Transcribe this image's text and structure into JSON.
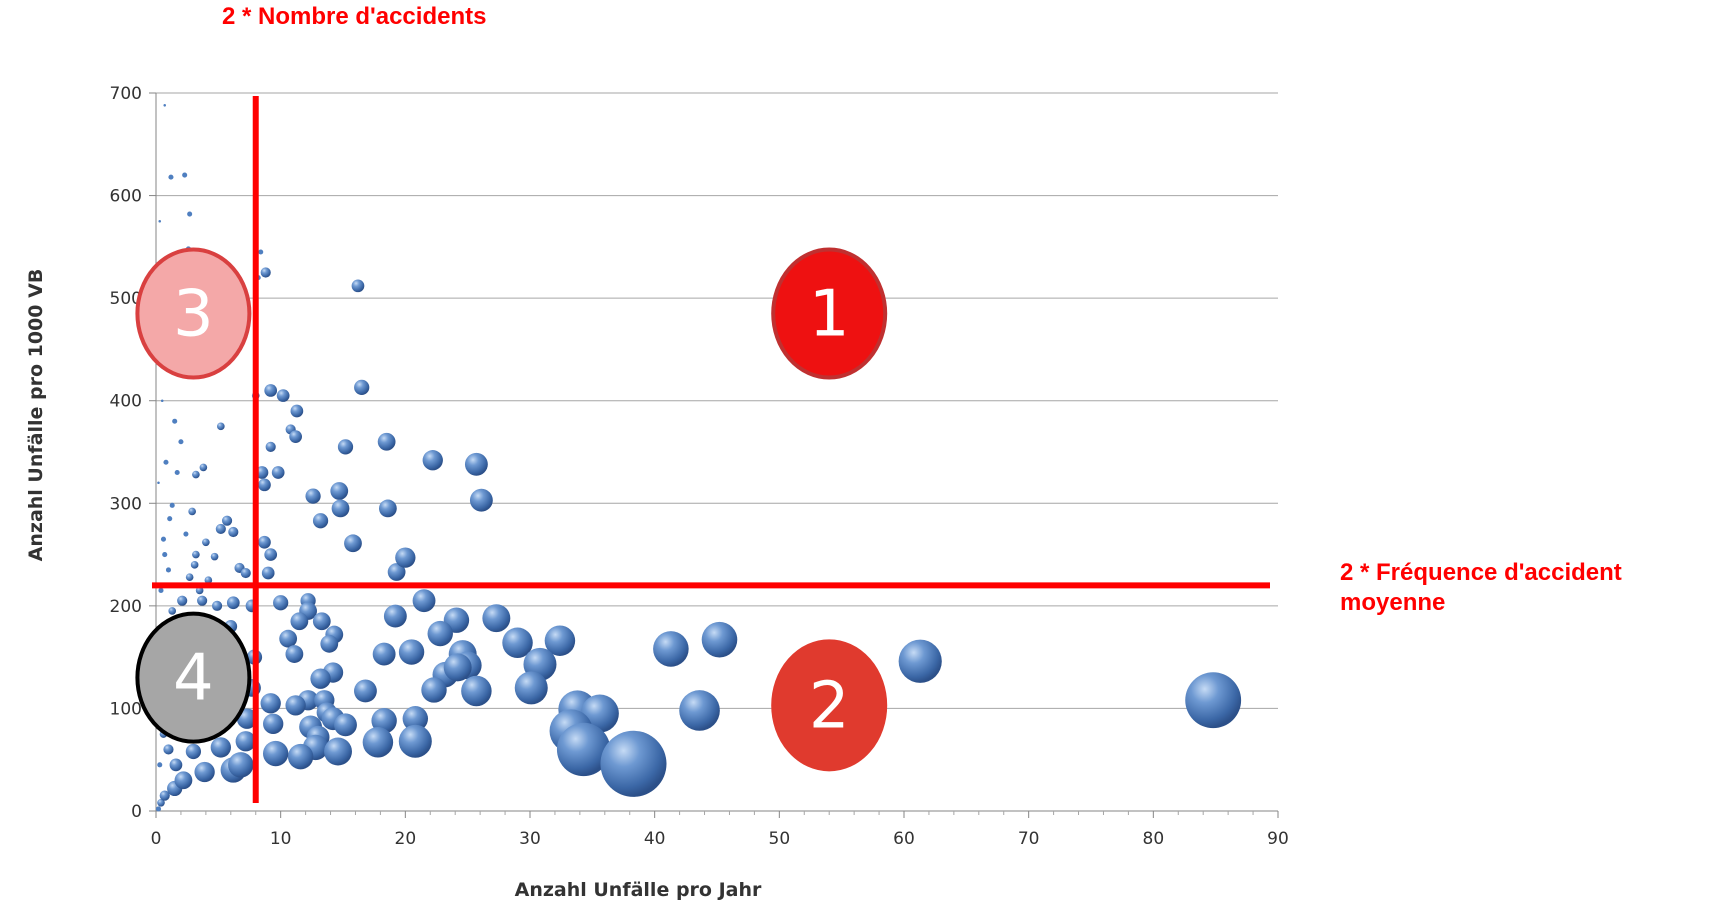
{
  "chart_data": {
    "type": "scatter",
    "variant": "bubble",
    "xlabel": "Anzahl Unfälle pro Jahr",
    "ylabel": "Anzahl Unfälle pro 1000 VB",
    "xlim": [
      0,
      90
    ],
    "ylim": [
      0,
      700
    ],
    "x_ticks": [
      0,
      10,
      20,
      30,
      40,
      50,
      60,
      70,
      80,
      90
    ],
    "y_ticks": [
      0,
      100,
      200,
      300,
      400,
      500,
      600,
      700
    ],
    "grid": "horizontal",
    "legend": "none",
    "series_color": "#4f7fc0",
    "reference_lines": {
      "vertical": {
        "x": 8,
        "label": "2 * Nombre d'accidents"
      },
      "horizontal": {
        "y": 220,
        "label": "2 * Fréquence d'accident\nmoyenne"
      },
      "color": "#ff0000"
    },
    "quadrants": [
      {
        "label": "1",
        "x": 54,
        "y": 485,
        "fill": "#ee1111",
        "border": "#c03030",
        "text": "#ffffff"
      },
      {
        "label": "2",
        "x": 54,
        "y": 103,
        "fill": "#e03a2e",
        "border": "#e03a2e",
        "text": "#ffffff"
      },
      {
        "label": "3",
        "x": 3,
        "y": 485,
        "fill": "#f4a8a8",
        "border": "#d94040",
        "text": "#ffffff"
      },
      {
        "label": "4",
        "x": 3,
        "y": 130,
        "fill": "#a6a6a6",
        "border": "#000000",
        "text": "#ffffff"
      }
    ],
    "points": [
      {
        "x": 0.7,
        "y": 688,
        "s": 1
      },
      {
        "x": 1.2,
        "y": 618,
        "s": 2
      },
      {
        "x": 2.3,
        "y": 620,
        "s": 2
      },
      {
        "x": 2.7,
        "y": 582,
        "s": 2
      },
      {
        "x": 0.3,
        "y": 575,
        "s": 1
      },
      {
        "x": 2.6,
        "y": 548,
        "s": 2
      },
      {
        "x": 8.4,
        "y": 545,
        "s": 2
      },
      {
        "x": 8.8,
        "y": 525,
        "s": 4
      },
      {
        "x": 16.2,
        "y": 512,
        "s": 5
      },
      {
        "x": 8.2,
        "y": 520,
        "s": 2
      },
      {
        "x": 16.5,
        "y": 413,
        "s": 6
      },
      {
        "x": 9.2,
        "y": 410,
        "s": 5
      },
      {
        "x": 10.2,
        "y": 405,
        "s": 5
      },
      {
        "x": 8.0,
        "y": 405,
        "s": 3
      },
      {
        "x": 11.3,
        "y": 390,
        "s": 5
      },
      {
        "x": 10.8,
        "y": 372,
        "s": 4
      },
      {
        "x": 11.2,
        "y": 365,
        "s": 5
      },
      {
        "x": 5.2,
        "y": 375,
        "s": 3
      },
      {
        "x": 18.5,
        "y": 360,
        "s": 7
      },
      {
        "x": 22.2,
        "y": 342,
        "s": 8
      },
      {
        "x": 25.7,
        "y": 338,
        "s": 9
      },
      {
        "x": 15.2,
        "y": 355,
        "s": 6
      },
      {
        "x": 9.2,
        "y": 355,
        "s": 4
      },
      {
        "x": 8.5,
        "y": 330,
        "s": 5
      },
      {
        "x": 9.8,
        "y": 330,
        "s": 5
      },
      {
        "x": 3.8,
        "y": 335,
        "s": 3
      },
      {
        "x": 3.2,
        "y": 328,
        "s": 3
      },
      {
        "x": 8.7,
        "y": 318,
        "s": 5
      },
      {
        "x": 14.7,
        "y": 312,
        "s": 7
      },
      {
        "x": 12.6,
        "y": 307,
        "s": 6
      },
      {
        "x": 26.1,
        "y": 303,
        "s": 9
      },
      {
        "x": 18.6,
        "y": 295,
        "s": 7
      },
      {
        "x": 14.8,
        "y": 295,
        "s": 7
      },
      {
        "x": 13.2,
        "y": 283,
        "s": 6
      },
      {
        "x": 5.7,
        "y": 283,
        "s": 4
      },
      {
        "x": 5.2,
        "y": 275,
        "s": 4
      },
      {
        "x": 6.2,
        "y": 272,
        "s": 4
      },
      {
        "x": 15.8,
        "y": 261,
        "s": 7
      },
      {
        "x": 8.7,
        "y": 262,
        "s": 5
      },
      {
        "x": 9.2,
        "y": 250,
        "s": 5
      },
      {
        "x": 20.0,
        "y": 247,
        "s": 8
      },
      {
        "x": 3.2,
        "y": 250,
        "s": 3
      },
      {
        "x": 4.7,
        "y": 248,
        "s": 3
      },
      {
        "x": 19.3,
        "y": 233,
        "s": 7
      },
      {
        "x": 6.7,
        "y": 237,
        "s": 4
      },
      {
        "x": 7.2,
        "y": 232,
        "s": 4
      },
      {
        "x": 9.0,
        "y": 232,
        "s": 5
      },
      {
        "x": 2.7,
        "y": 228,
        "s": 3
      },
      {
        "x": 4.2,
        "y": 225,
        "s": 3
      },
      {
        "x": 12.2,
        "y": 205,
        "s": 6
      },
      {
        "x": 10.0,
        "y": 203,
        "s": 6
      },
      {
        "x": 21.5,
        "y": 205,
        "s": 9
      },
      {
        "x": 6.2,
        "y": 203,
        "s": 5
      },
      {
        "x": 7.7,
        "y": 200,
        "s": 5
      },
      {
        "x": 19.2,
        "y": 190,
        "s": 9
      },
      {
        "x": 12.2,
        "y": 195,
        "s": 7
      },
      {
        "x": 11.5,
        "y": 185,
        "s": 7
      },
      {
        "x": 13.3,
        "y": 185,
        "s": 7
      },
      {
        "x": 24.1,
        "y": 186,
        "s": 10
      },
      {
        "x": 27.3,
        "y": 188,
        "s": 11
      },
      {
        "x": 22.8,
        "y": 173,
        "s": 10
      },
      {
        "x": 14.3,
        "y": 172,
        "s": 7
      },
      {
        "x": 10.6,
        "y": 168,
        "s": 7
      },
      {
        "x": 13.9,
        "y": 163,
        "s": 7
      },
      {
        "x": 29.0,
        "y": 164,
        "s": 12
      },
      {
        "x": 32.4,
        "y": 166,
        "s": 12
      },
      {
        "x": 45.2,
        "y": 167,
        "s": 14
      },
      {
        "x": 41.3,
        "y": 158,
        "s": 14
      },
      {
        "x": 61.3,
        "y": 146,
        "s": 17
      },
      {
        "x": 20.5,
        "y": 155,
        "s": 10
      },
      {
        "x": 18.3,
        "y": 153,
        "s": 9
      },
      {
        "x": 24.6,
        "y": 153,
        "s": 11
      },
      {
        "x": 25.0,
        "y": 142,
        "s": 11
      },
      {
        "x": 30.8,
        "y": 143,
        "s": 13
      },
      {
        "x": 11.1,
        "y": 153,
        "s": 7
      },
      {
        "x": 23.2,
        "y": 133,
        "s": 10
      },
      {
        "x": 24.2,
        "y": 140,
        "s": 11
      },
      {
        "x": 14.2,
        "y": 135,
        "s": 8
      },
      {
        "x": 13.2,
        "y": 129,
        "s": 8
      },
      {
        "x": 30.1,
        "y": 120,
        "s": 13
      },
      {
        "x": 25.7,
        "y": 117,
        "s": 12
      },
      {
        "x": 22.3,
        "y": 118,
        "s": 10
      },
      {
        "x": 16.8,
        "y": 117,
        "s": 9
      },
      {
        "x": 84.8,
        "y": 108,
        "s": 22
      },
      {
        "x": 12.2,
        "y": 108,
        "s": 8
      },
      {
        "x": 13.5,
        "y": 108,
        "s": 8
      },
      {
        "x": 9.2,
        "y": 105,
        "s": 8
      },
      {
        "x": 11.2,
        "y": 103,
        "s": 8
      },
      {
        "x": 33.8,
        "y": 99,
        "s": 15
      },
      {
        "x": 35.6,
        "y": 95,
        "s": 15
      },
      {
        "x": 43.6,
        "y": 98,
        "s": 16
      },
      {
        "x": 13.7,
        "y": 96,
        "s": 8
      },
      {
        "x": 14.2,
        "y": 90,
        "s": 9
      },
      {
        "x": 20.8,
        "y": 90,
        "s": 10
      },
      {
        "x": 18.3,
        "y": 88,
        "s": 10
      },
      {
        "x": 15.2,
        "y": 84,
        "s": 9
      },
      {
        "x": 12.4,
        "y": 82,
        "s": 9
      },
      {
        "x": 9.4,
        "y": 85,
        "s": 8
      },
      {
        "x": 33.3,
        "y": 78,
        "s": 17
      },
      {
        "x": 13.0,
        "y": 72,
        "s": 9
      },
      {
        "x": 17.8,
        "y": 67,
        "s": 12
      },
      {
        "x": 20.8,
        "y": 68,
        "s": 13
      },
      {
        "x": 12.8,
        "y": 62,
        "s": 10
      },
      {
        "x": 14.6,
        "y": 58,
        "s": 11
      },
      {
        "x": 34.3,
        "y": 60,
        "s": 21
      },
      {
        "x": 38.3,
        "y": 46,
        "s": 26
      },
      {
        "x": 11.6,
        "y": 53,
        "s": 10
      },
      {
        "x": 9.6,
        "y": 56,
        "s": 10
      },
      {
        "x": 6.2,
        "y": 40,
        "s": 10
      },
      {
        "x": 3.9,
        "y": 38,
        "s": 8
      },
      {
        "x": 6.8,
        "y": 45,
        "s": 10
      },
      {
        "x": 5.2,
        "y": 62,
        "s": 8
      },
      {
        "x": 7.2,
        "y": 68,
        "s": 8
      },
      {
        "x": 2.2,
        "y": 30,
        "s": 7
      },
      {
        "x": 1.5,
        "y": 22,
        "s": 6
      },
      {
        "x": 0.7,
        "y": 15,
        "s": 4
      },
      {
        "x": 0.4,
        "y": 8,
        "s": 3
      },
      {
        "x": 0.2,
        "y": 2,
        "s": 2
      },
      {
        "x": 2.5,
        "y": 85,
        "s": 6
      },
      {
        "x": 4.5,
        "y": 105,
        "s": 7
      },
      {
        "x": 5.3,
        "y": 120,
        "s": 7
      },
      {
        "x": 6.5,
        "y": 140,
        "s": 6
      },
      {
        "x": 2.8,
        "y": 152,
        "s": 5
      },
      {
        "x": 3.4,
        "y": 170,
        "s": 5
      },
      {
        "x": 1.8,
        "y": 185,
        "s": 4
      },
      {
        "x": 5.0,
        "y": 160,
        "s": 5
      },
      {
        "x": 7.7,
        "y": 120,
        "s": 7
      },
      {
        "x": 7.3,
        "y": 90,
        "s": 8
      },
      {
        "x": 1.2,
        "y": 118,
        "s": 4
      },
      {
        "x": 0.6,
        "y": 75,
        "s": 3
      },
      {
        "x": 1.0,
        "y": 60,
        "s": 4
      },
      {
        "x": 3.0,
        "y": 58,
        "s": 6
      },
      {
        "x": 1.6,
        "y": 45,
        "s": 5
      },
      {
        "x": 7.9,
        "y": 150,
        "s": 6
      },
      {
        "x": 6.0,
        "y": 180,
        "s": 5
      },
      {
        "x": 2.1,
        "y": 205,
        "s": 4
      },
      {
        "x": 3.7,
        "y": 205,
        "s": 4
      },
      {
        "x": 4.9,
        "y": 200,
        "s": 4
      },
      {
        "x": 1.0,
        "y": 235,
        "s": 2
      },
      {
        "x": 0.6,
        "y": 265,
        "s": 2
      },
      {
        "x": 1.3,
        "y": 298,
        "s": 2
      },
      {
        "x": 0.8,
        "y": 340,
        "s": 2
      },
      {
        "x": 1.5,
        "y": 380,
        "s": 2
      },
      {
        "x": 0.5,
        "y": 400,
        "s": 1
      },
      {
        "x": 2.0,
        "y": 360,
        "s": 2
      },
      {
        "x": 1.1,
        "y": 285,
        "s": 2
      },
      {
        "x": 0.4,
        "y": 215,
        "s": 2
      },
      {
        "x": 0.3,
        "y": 170,
        "s": 2
      },
      {
        "x": 0.9,
        "y": 140,
        "s": 3
      },
      {
        "x": 0.5,
        "y": 100,
        "s": 3
      },
      {
        "x": 2.4,
        "y": 270,
        "s": 2
      },
      {
        "x": 3.1,
        "y": 240,
        "s": 3
      },
      {
        "x": 0.2,
        "y": 320,
        "s": 1
      },
      {
        "x": 0.7,
        "y": 250,
        "s": 2
      },
      {
        "x": 1.7,
        "y": 330,
        "s": 2
      },
      {
        "x": 2.9,
        "y": 292,
        "s": 3
      },
      {
        "x": 4.0,
        "y": 262,
        "s": 3
      },
      {
        "x": 3.5,
        "y": 215,
        "s": 3
      },
      {
        "x": 1.3,
        "y": 195,
        "s": 3
      },
      {
        "x": 0.3,
        "y": 45,
        "s": 2
      }
    ]
  }
}
